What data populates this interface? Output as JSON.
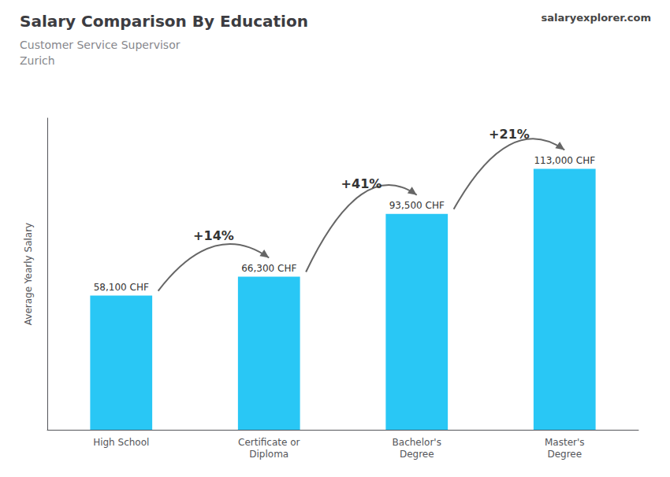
{
  "chart_data": {
    "type": "bar",
    "title": "Salary Comparison By Education",
    "subtitle": [
      "Customer Service Supervisor",
      "Zurich"
    ],
    "categories": [
      "High School",
      "Certificate or\nDiploma",
      "Bachelor's\nDegree",
      "Master's\nDegree"
    ],
    "values": [
      58100,
      66300,
      93500,
      113000
    ],
    "value_labels": [
      "58,100 CHF",
      "66,300 CHF",
      "93,500 CHF",
      "113,000 CHF"
    ],
    "data_labels": true,
    "color": "#29c7f5",
    "ylabel": "Average Yearly Salary",
    "ylim": [
      0,
      135000
    ],
    "tick_labels": "x",
    "grid": false,
    "annotations": [
      {
        "text": "+14%",
        "from": "High School",
        "to": "Certificate or\nDiploma"
      },
      {
        "text": "+41%",
        "from": "Certificate or\nDiploma",
        "to": "Bachelor's\nDegree"
      },
      {
        "text": "+21%",
        "from": "Bachelor's\nDegree",
        "to": "Master's\nDegree"
      },
      {
        "text": "salaryexplorer.com"
      }
    ]
  }
}
